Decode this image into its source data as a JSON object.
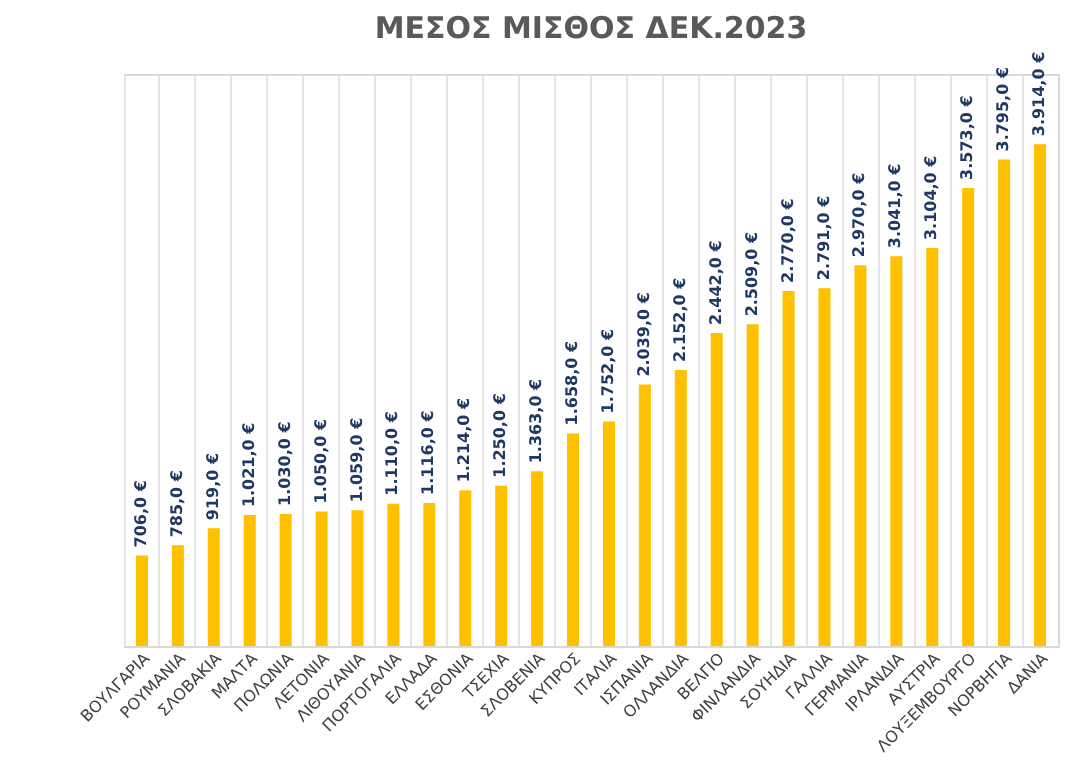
{
  "chart_data": {
    "type": "bar",
    "title": "ΜΕΣΟΣ ΜΙΣΘΟΣ ΔΕΚ.2023",
    "categories": [
      "ΒΟΥΛΓΑΡΙΑ",
      "ΡΟΥΜΑΝΙΑ",
      "ΣΛΟΒΑΚΙΑ",
      "ΜΑΛΤΑ",
      "ΠΟΛΩΝΙΑ",
      "ΛΕΤΟΝΙΑ",
      "ΛΙΘΟΥΑΝΙΑ",
      "ΠΟΡΤΟΓΑΛΙΑ",
      "ΕΛΛΑΔΑ",
      "ΕΣΘΟΝΙΑ",
      "ΤΣΕΧΙΑ",
      "ΣΛΟΒΕΝΙΑ",
      "ΚΥΠΡΟΣ",
      "ΙΤΑΛΙΑ",
      "ΙΣΠΑΝΙΑ",
      "ΟΛΛΑΝΔΙΑ",
      "ΒΕΛΓΙΟ",
      "ΦΙΝΛΑΝΔΙΑ",
      "ΣΟΥΗΔΙΑ",
      "ΓΑΛΛΙΑ",
      "ΓΕΡΜΑΝΙΑ",
      "ΙΡΛΑΝΔΙΑ",
      "ΑΥΣΤΡΙΑ",
      "ΛΟΥΞΕΜΒΟΥΡΓΟ",
      "ΝΟΡΒΗΓΙΑ",
      "ΔΑΝΙΑ"
    ],
    "values": [
      706,
      785,
      919,
      1021,
      1030,
      1050,
      1059,
      1110,
      1116,
      1214,
      1250,
      1363,
      1658,
      1752,
      2039,
      2152,
      2442,
      2509,
      2770,
      2791,
      2970,
      3041,
      3104,
      3573,
      3795,
      3914
    ],
    "value_labels": [
      "706,0 €",
      "785,0 €",
      "919,0 €",
      "1.021,0 €",
      "1.030,0 €",
      "1.050,0 €",
      "1.059,0 €",
      "1.110,0 €",
      "1.116,0 €",
      "1.214,0 €",
      "1.250,0 €",
      "1.363,0 €",
      "1.658,0 €",
      "1.752,0 €",
      "2.039,0 €",
      "2.152,0 €",
      "2.442,0 €",
      "2.509,0 €",
      "2.770,0 €",
      "2.791,0 €",
      "2.970,0 €",
      "3.041,0 €",
      "3.104,0 €",
      "3.573,0 €",
      "3.795,0 €",
      "3.914,0 €"
    ],
    "color": "#ffc000",
    "grid": "x"
  }
}
